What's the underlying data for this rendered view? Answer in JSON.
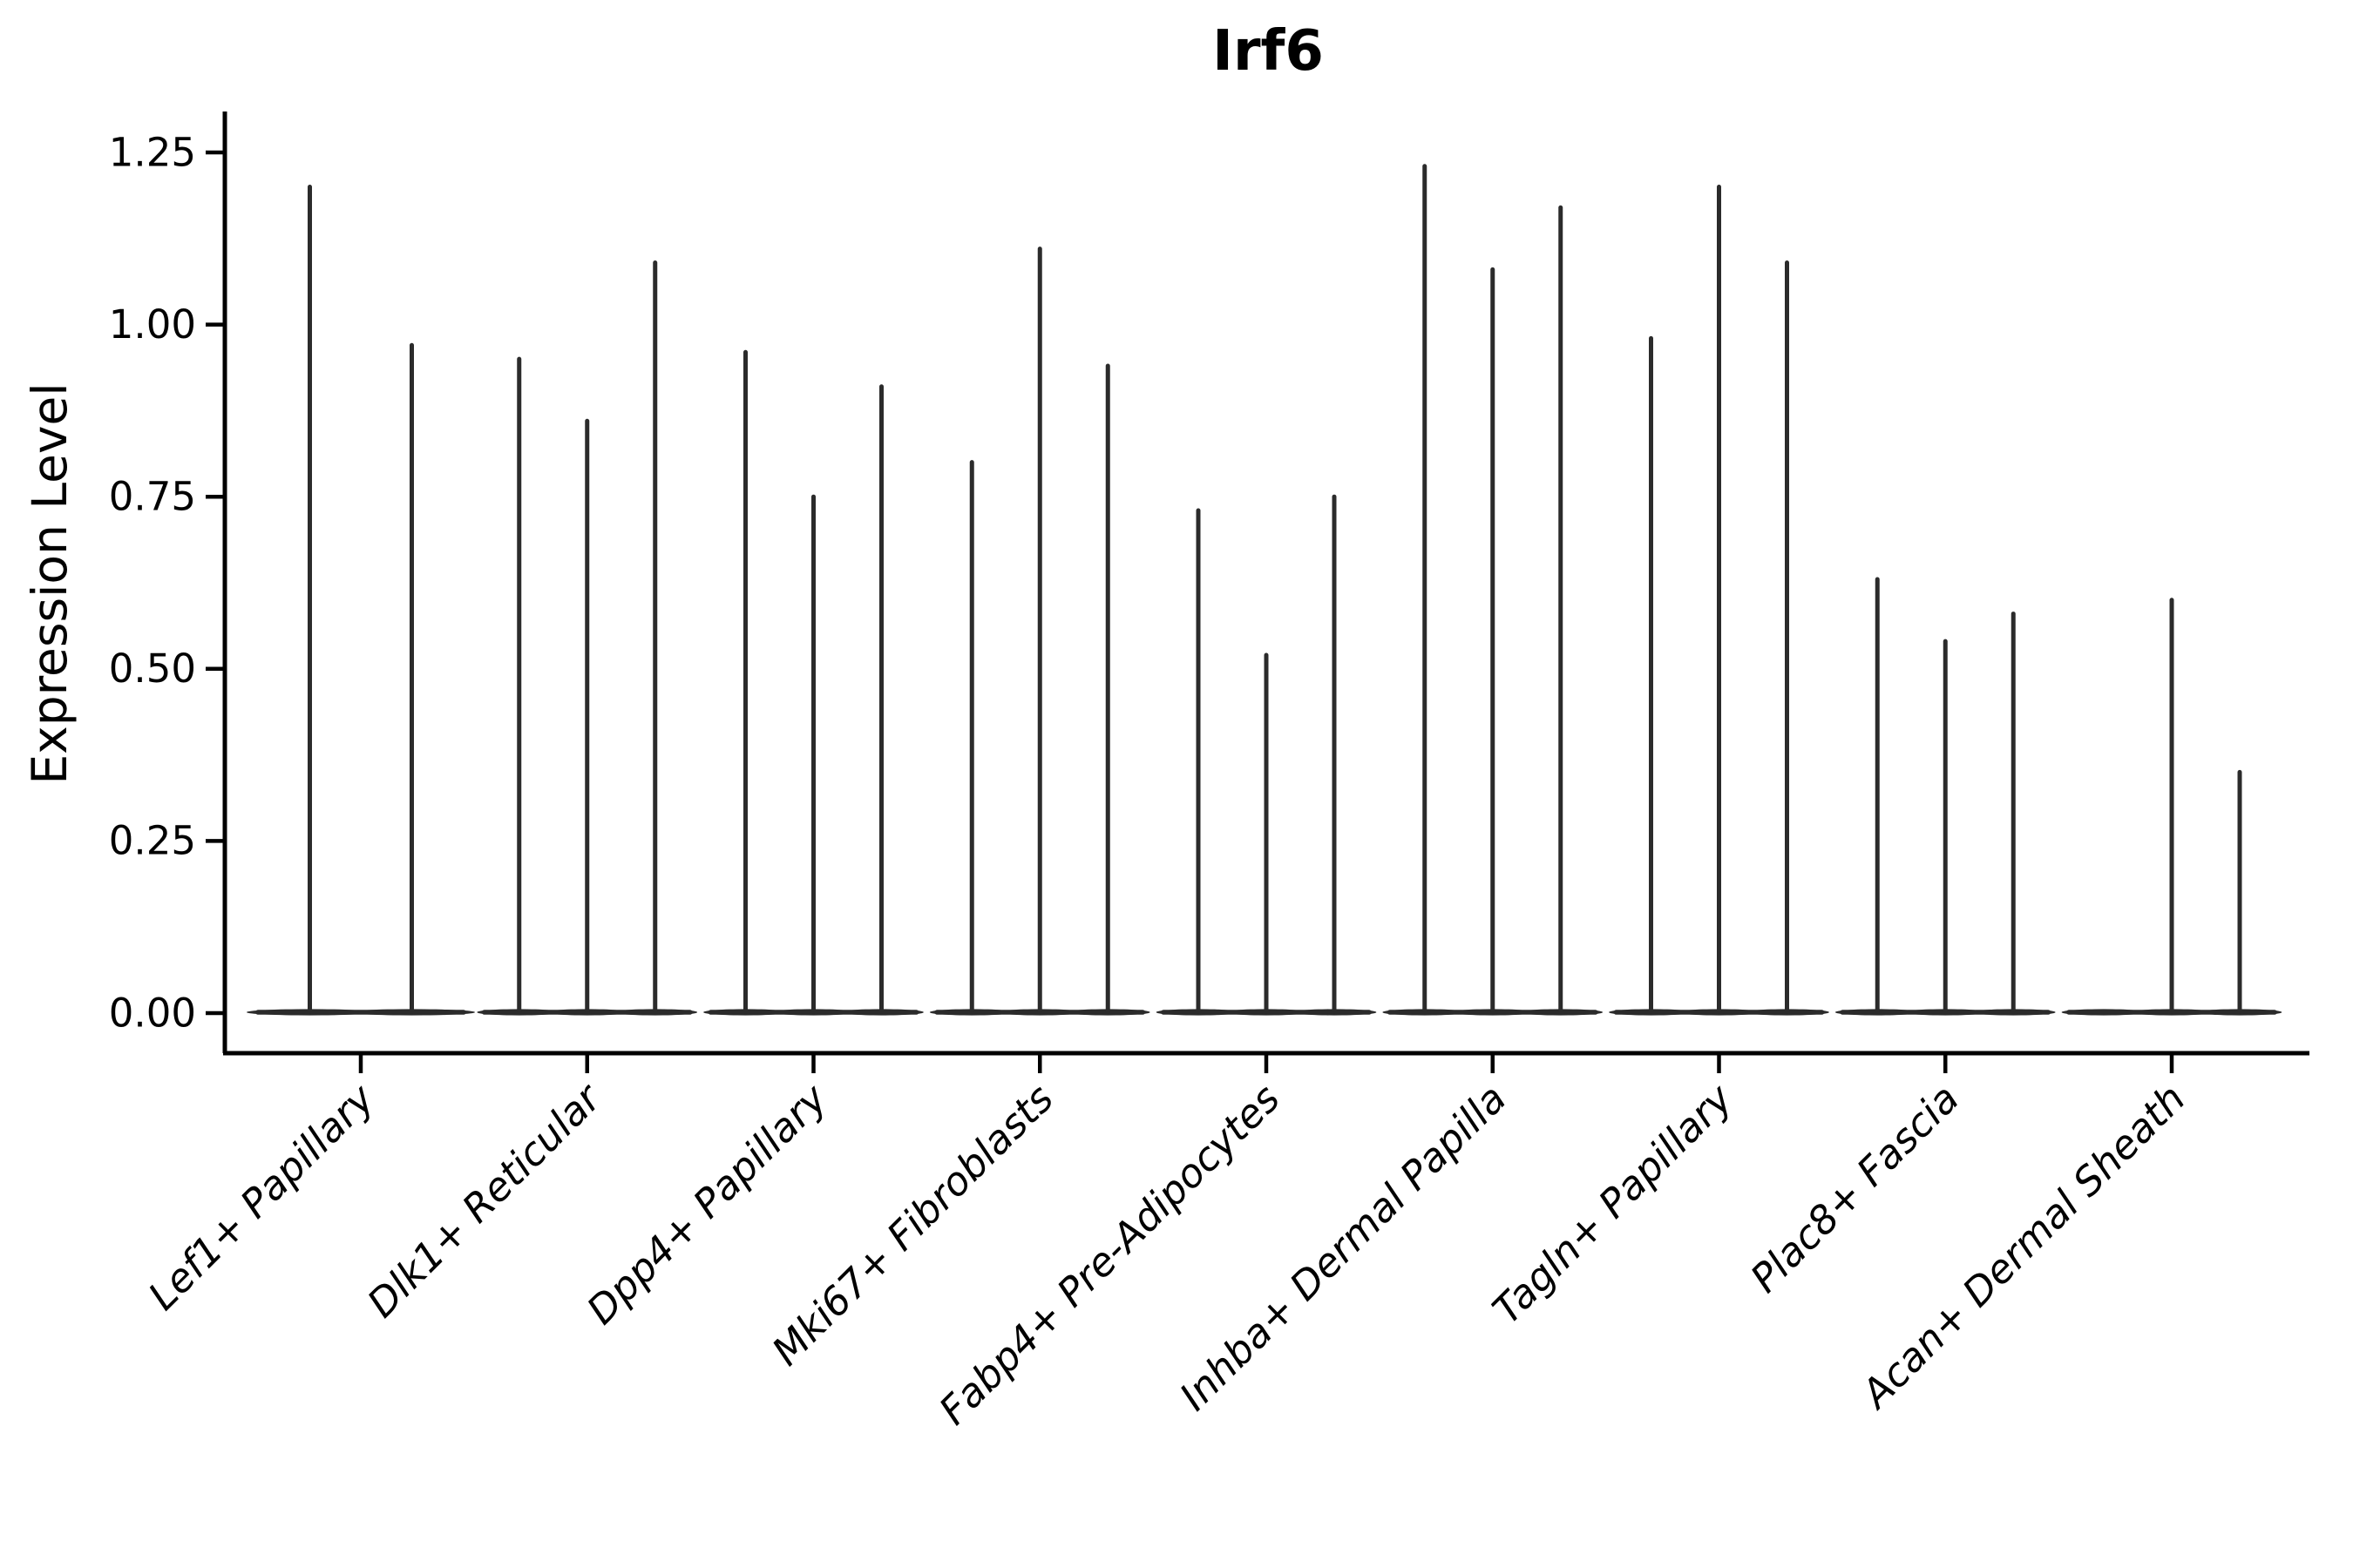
{
  "chart_data": {
    "type": "violin",
    "title": "Irf6",
    "ylabel": "Expression Level",
    "xlabel": "",
    "legend_position": "none",
    "grid": false,
    "background": "#ffffff",
    "ylim": [
      0,
      1.31
    ],
    "ytick_values": [
      0,
      0.25,
      0.5,
      0.75,
      1.0,
      1.25
    ],
    "ytick_labels": [
      "0.00",
      "0.25",
      "0.50",
      "0.75",
      "1.00",
      "1.25"
    ],
    "categories": [
      "Lef1+ Papillary",
      "Dlk1+ Reticular",
      "Dpp4+ Papillary",
      "Mki67+ Fibroblasts",
      "Fabp4+ Pre-Adipocytes",
      "Inhba+ Dermal Papilla",
      "Tagln+ Papillary",
      "Plac8+ Fascia",
      "Acan+ Dermal Sheath"
    ],
    "groups": [
      {
        "category": "Lef1+ Papillary",
        "violin_max": [
          1.2,
          0.97
        ]
      },
      {
        "category": "Dlk1+ Reticular",
        "violin_max": [
          0.95,
          0.86,
          1.09
        ]
      },
      {
        "category": "Dpp4+ Papillary",
        "violin_max": [
          0.96,
          0.75,
          0.91
        ]
      },
      {
        "category": "Mki67+ Fibroblasts",
        "violin_max": [
          0.8,
          1.11,
          0.94
        ]
      },
      {
        "category": "Fabp4+ Pre-Adipocytes",
        "violin_max": [
          0.73,
          0.52,
          0.75
        ]
      },
      {
        "category": "Inhba+ Dermal Papilla",
        "violin_max": [
          1.23,
          1.08,
          1.17
        ]
      },
      {
        "category": "Tagln+ Papillary",
        "violin_max": [
          0.98,
          1.2,
          1.09
        ]
      },
      {
        "category": "Plac8+ Fascia",
        "violin_max": [
          0.63,
          0.54,
          0.58
        ]
      },
      {
        "category": "Acan+ Dermal Sheath",
        "violin_max": [
          0.0,
          0.6,
          0.35
        ]
      }
    ],
    "colors": {
      "violin": "#2b2b2b",
      "axis": "#000000",
      "text": "#000000",
      "background": "#ffffff"
    }
  }
}
